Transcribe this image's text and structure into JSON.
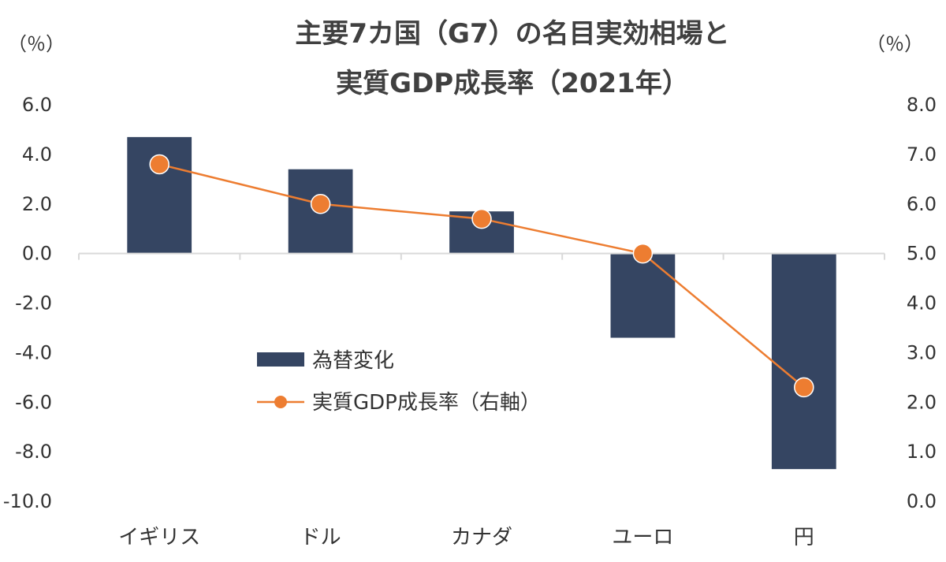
{
  "chart_data": {
    "type": "bar+line",
    "title_lines": [
      "主要7カ国（G7）の名目実効相場と",
      "実質GDP成長率（2021年）"
    ],
    "left_axis_unit": "（％）",
    "right_axis_unit": "（％）",
    "categories": [
      "イギリス",
      "ドル",
      "カナダ",
      "ユーロ",
      "円"
    ],
    "series": [
      {
        "name": "為替変化",
        "type": "bar",
        "axis": "left",
        "color": "#354562",
        "values": [
          4.7,
          3.4,
          1.7,
          -3.4,
          -8.7
        ]
      },
      {
        "name": "実質GDP成長率（右軸）",
        "type": "line",
        "axis": "right",
        "color": "#ED7D31",
        "values": [
          6.8,
          6.0,
          5.7,
          5.0,
          2.3
        ]
      }
    ],
    "left_axis": {
      "ylim": [
        -10,
        6
      ],
      "ticks": [
        "6.0",
        "4.0",
        "2.0",
        "0.0",
        "-2.0",
        "-4.0",
        "-6.0",
        "-8.0",
        "-10.0"
      ],
      "tick_values": [
        6,
        4,
        2,
        0,
        -2,
        -4,
        -6,
        -8,
        -10
      ],
      "negative_tick_color": "#E0201B"
    },
    "right_axis": {
      "ylim": [
        0,
        8
      ],
      "ticks": [
        "8.0",
        "7.0",
        "6.0",
        "5.0",
        "4.0",
        "3.0",
        "2.0",
        "1.0",
        "0.0"
      ],
      "tick_values": [
        8,
        7,
        6,
        5,
        4,
        3,
        2,
        1,
        0
      ]
    },
    "grid": false,
    "legend_position": "center-left"
  }
}
